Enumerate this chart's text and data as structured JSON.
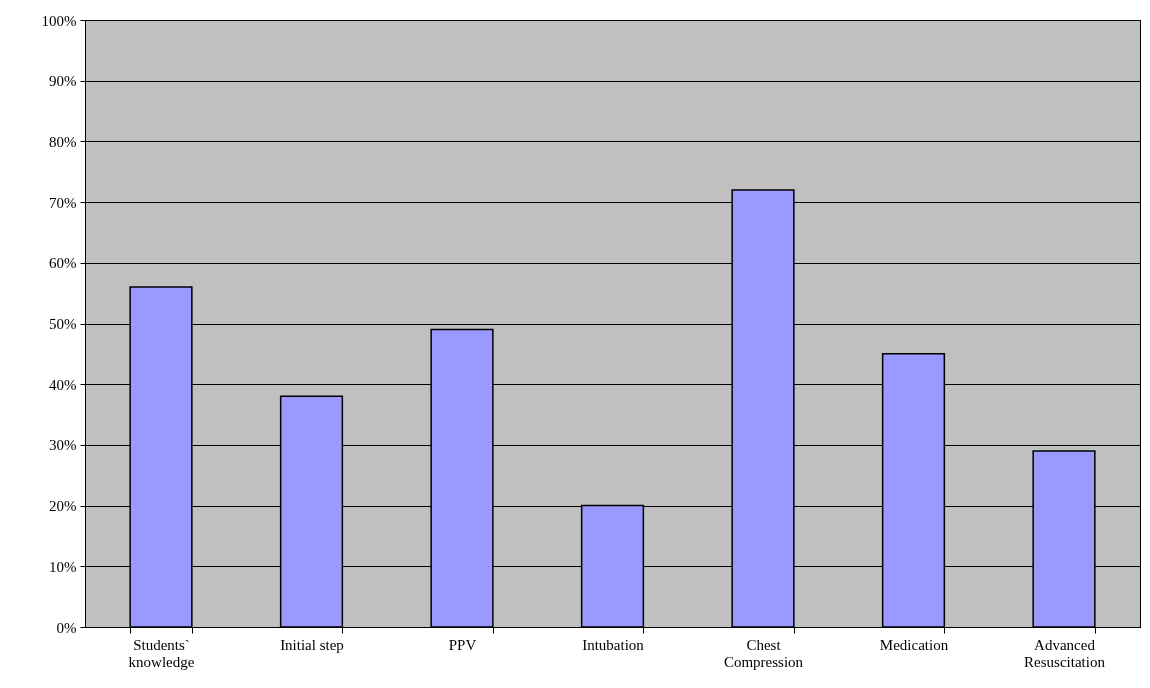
{
  "chart_data": {
    "type": "bar",
    "categories": [
      "Students` knowledge",
      "Initial step",
      "PPV",
      "Intubation",
      "Chest Compression",
      "Medication",
      "Advanced Resuscitation"
    ],
    "values": [
      56,
      38,
      49,
      20,
      72,
      45,
      29
    ],
    "color": "#9999ff",
    "ylim": [
      0,
      100
    ],
    "yticks": [
      {
        "value": 0,
        "label": "0%"
      },
      {
        "value": 10,
        "label": "10%"
      },
      {
        "value": 20,
        "label": "20%"
      },
      {
        "value": 30,
        "label": "30%"
      },
      {
        "value": 40,
        "label": "40%"
      },
      {
        "value": 50,
        "label": "50%"
      },
      {
        "value": 60,
        "label": "60%"
      },
      {
        "value": 70,
        "label": "70%"
      },
      {
        "value": 80,
        "label": "80%"
      },
      {
        "value": 90,
        "label": "90%"
      },
      {
        "value": 100,
        "label": "100%"
      }
    ],
    "grid": "y"
  }
}
